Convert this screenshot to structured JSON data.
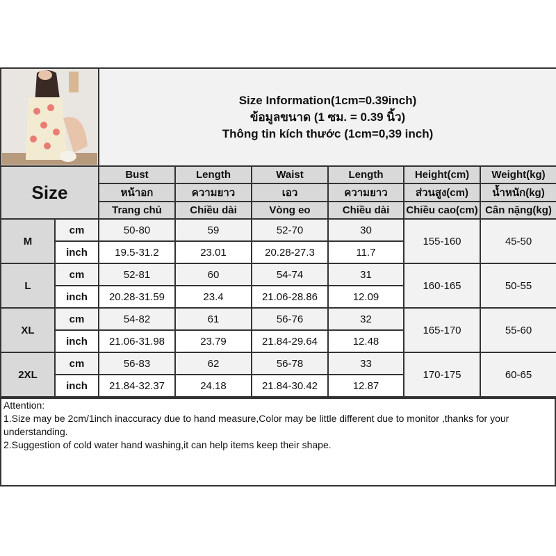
{
  "title_lines": [
    "Size Information(1cm=0.39inch)",
    "ข้อมูลขนาด (1 ซม. = 0.39 นิ้ว)",
    "Thông tin kích thước (1cm=0,39 inch)"
  ],
  "size_label": "Size",
  "headers": {
    "en": [
      "Bust",
      "Length",
      "Waist",
      "Length",
      "Height(cm)",
      "Weight(kg)"
    ],
    "th": [
      "หน้าอก",
      "ความยาว",
      "เอว",
      "ความยาว",
      "ส่วนสูง(cm)",
      "น้ำหนัก(kg)"
    ],
    "vi": [
      "Trang chủ",
      "Chiều dài",
      "Vòng eo",
      "Chiều dài",
      "Chiều cao(cm)",
      "Cân nặng(kg)"
    ]
  },
  "units": {
    "cm": "cm",
    "inch": "inch"
  },
  "sizes": [
    {
      "size": "M",
      "cm": [
        "50-80",
        "59",
        "52-70",
        "30"
      ],
      "inch": [
        "19.5-31.2",
        "23.01",
        "20.28-27.3",
        "11.7"
      ],
      "height": "155-160",
      "weight": "45-50"
    },
    {
      "size": "L",
      "cm": [
        "52-81",
        "60",
        "54-74",
        "31"
      ],
      "inch": [
        "20.28-31.59",
        "23.4",
        "21.06-28.86",
        "12.09"
      ],
      "height": "160-165",
      "weight": "50-55"
    },
    {
      "size": "XL",
      "cm": [
        "54-82",
        "61",
        "56-76",
        "32"
      ],
      "inch": [
        "21.06-31.98",
        "23.79",
        "21.84-29.64",
        "12.48"
      ],
      "height": "165-170",
      "weight": "55-60"
    },
    {
      "size": "2XL",
      "cm": [
        "56-83",
        "62",
        "56-78",
        "33"
      ],
      "inch": [
        "21.84-32.37",
        "24.18",
        "21.84-30.42",
        "12.87"
      ],
      "height": "170-175",
      "weight": "60-65"
    }
  ],
  "attention": [
    "Attention:",
    "1.Size may be 2cm/1inch inaccuracy due to hand measure,Color may be little different due to monitor ,thanks for your understanding.",
    "2.Suggestion of cold water hand washing,it can help items keep their shape."
  ],
  "colors": {
    "header_bg": "#d9d9d9",
    "alt_row_bg": "#f2f2f2",
    "border": "#333333"
  }
}
